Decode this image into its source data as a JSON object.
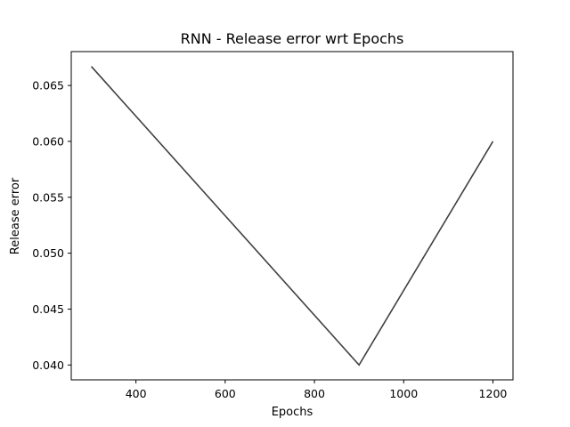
{
  "chart_data": {
    "type": "line",
    "title": "RNN - Release error wrt Epochs",
    "xlabel": "Epochs",
    "ylabel": "Release error",
    "x": [
      300,
      900,
      1200
    ],
    "series": [
      {
        "values": [
          0.0667,
          0.04,
          0.06
        ]
      }
    ],
    "xlim": [
      255,
      1245
    ],
    "ylim": [
      0.03867,
      0.06803
    ],
    "xticks": [
      400,
      600,
      800,
      1000,
      1200
    ],
    "xtick_labels": [
      "400",
      "600",
      "800",
      "1000",
      "1200"
    ],
    "yticks": [
      0.04,
      0.045,
      0.05,
      0.055,
      0.06,
      0.065
    ],
    "ytick_labels": [
      "0.040",
      "0.045",
      "0.050",
      "0.055",
      "0.060",
      "0.065"
    ],
    "grid": false,
    "line_color": "#404040"
  }
}
